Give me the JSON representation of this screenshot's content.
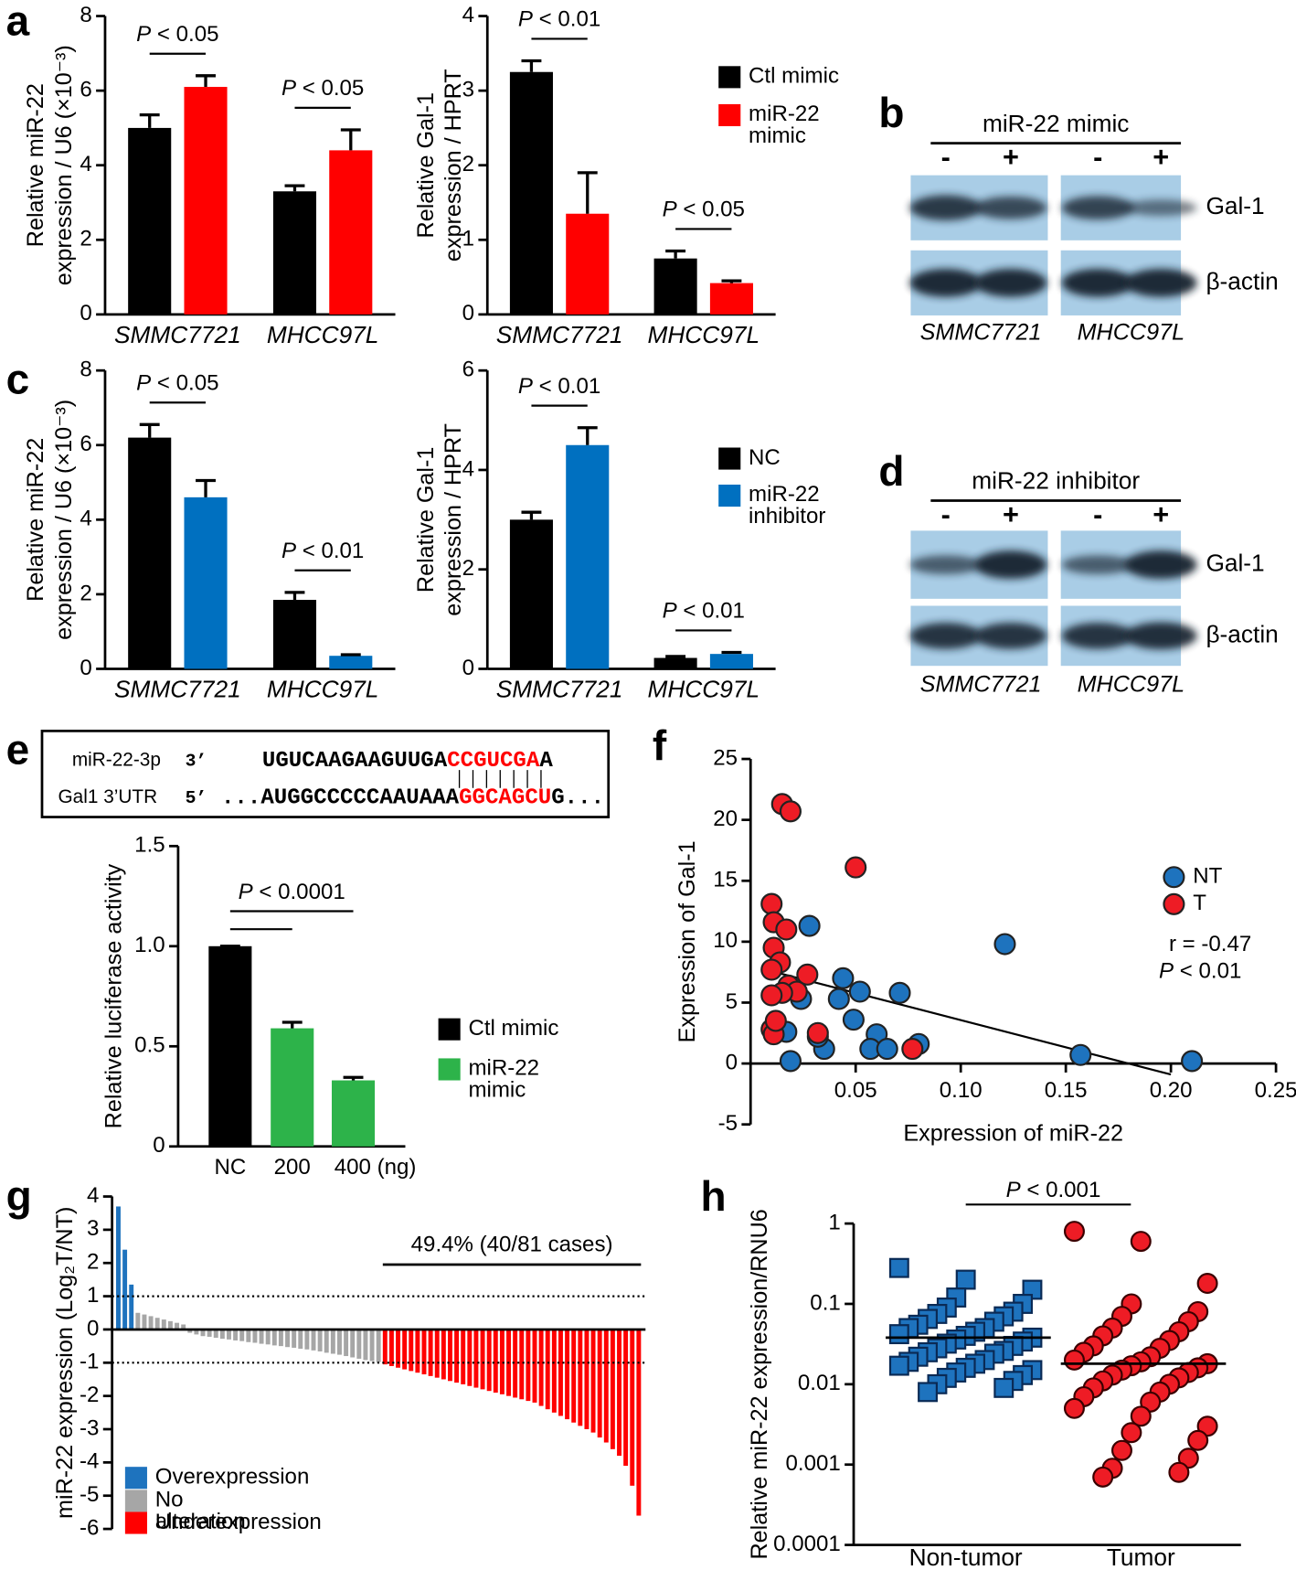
{
  "panel_labels": [
    "a",
    "b",
    "c",
    "d",
    "e",
    "f",
    "g",
    "h"
  ],
  "blots": [
    {
      "treatment": "miR-22 mimic",
      "lanes": [
        "-",
        "+",
        "-",
        "+"
      ],
      "rows": [
        "Gal-1",
        "β-actin"
      ],
      "cell_lines": [
        "SMMC7721",
        "MHCC97L"
      ]
    },
    {
      "treatment": "miR-22 inhibitor",
      "lanes": [
        "-",
        "+",
        "-",
        "+"
      ],
      "rows": [
        "Gal-1",
        "β-actin"
      ],
      "cell_lines": [
        "SMMC7721",
        "MHCC97L"
      ]
    }
  ],
  "sequence": {
    "mir_label": "miR-22-3p",
    "mir_end": "3’",
    "mir_seq": [
      "UGUCAAGAAGUUGA",
      "CCGUCGA",
      "A"
    ],
    "utr_label": "Gal1 3’UTR",
    "utr_end": "5’",
    "utr_seq": [
      "...AUGGCCCCCAAUAAA",
      "GGCAGCU",
      "G..."
    ]
  },
  "chart_data": [
    {
      "type": "bar",
      "ylabel": [
        "Relative miR-22",
        "expression / U6 (×10⁻³)"
      ],
      "categories": [
        "SMMC7721",
        "MHCC97L"
      ],
      "series": [
        {
          "color": "#000000",
          "values": [
            5.0,
            3.3
          ],
          "errors": [
            0.35,
            0.15
          ]
        },
        {
          "color": "#ff0000",
          "values": [
            6.1,
            4.4
          ],
          "errors": [
            0.3,
            0.55
          ]
        }
      ],
      "ylim": [
        0,
        8
      ],
      "yticks": [
        0,
        2,
        4,
        6,
        8
      ],
      "annotations": [
        "P < 0.05",
        "P < 0.05"
      ]
    },
    {
      "type": "bar",
      "ylabel": [
        "Relative Gal-1",
        "expression / HPRT"
      ],
      "categories": [
        "SMMC7721",
        "MHCC97L"
      ],
      "series": [
        {
          "name": "Ctl mimic",
          "color": "#000000",
          "values": [
            3.25,
            0.75
          ],
          "errors": [
            0.15,
            0.1
          ]
        },
        {
          "name": "miR-22 mimic",
          "color": "#ff0000",
          "values": [
            1.35,
            0.42
          ],
          "errors": [
            0.55,
            0.03
          ]
        }
      ],
      "ylim": [
        0,
        4
      ],
      "yticks": [
        0,
        1,
        2,
        3,
        4
      ],
      "annotations": [
        "P < 0.01",
        "P < 0.05"
      ]
    },
    {
      "type": "bar",
      "ylabel": [
        "Relative miR-22",
        "expression / U6 (×10⁻³)"
      ],
      "categories": [
        "SMMC7721",
        "MHCC97L"
      ],
      "series": [
        {
          "color": "#000000",
          "values": [
            6.2,
            1.85
          ],
          "errors": [
            0.35,
            0.2
          ]
        },
        {
          "color": "#0070c0",
          "values": [
            4.6,
            0.35
          ],
          "errors": [
            0.45,
            0.03
          ]
        }
      ],
      "ylim": [
        0,
        8
      ],
      "yticks": [
        0,
        2,
        4,
        6,
        8
      ],
      "annotations": [
        "P < 0.05",
        "P < 0.01"
      ]
    },
    {
      "type": "bar",
      "ylabel": [
        "Relative Gal-1",
        "expression / HPRT"
      ],
      "categories": [
        "SMMC7721",
        "MHCC97L"
      ],
      "series": [
        {
          "name": "NC",
          "color": "#000000",
          "values": [
            3.0,
            0.22
          ],
          "errors": [
            0.15,
            0.03
          ]
        },
        {
          "name": "miR-22 inhibitor",
          "color": "#0070c0",
          "values": [
            4.5,
            0.3
          ],
          "errors": [
            0.35,
            0.03
          ]
        }
      ],
      "ylim": [
        0,
        6
      ],
      "yticks": [
        0,
        2,
        4,
        6
      ],
      "annotations": [
        "P < 0.01",
        "P < 0.01"
      ]
    },
    {
      "type": "bar",
      "ylabel": [
        "Relative luciferase activity"
      ],
      "categories": [
        "NC",
        "200",
        "400 (ng)"
      ],
      "values": [
        1.0,
        0.59,
        0.33
      ],
      "errors": [
        0,
        0.03,
        0.015
      ],
      "colors": [
        "#000000",
        "#2db34a",
        "#2db34a"
      ],
      "legend": [
        {
          "name": "Ctl mimic",
          "color": "#000000"
        },
        {
          "name": "miR-22 mimic",
          "color": "#2db34a"
        }
      ],
      "ylim": [
        0,
        1.5
      ],
      "yticks": [
        0,
        0.5,
        {
          "value": 1,
          "label": "1.0"
        },
        1.5
      ],
      "annotation": "P < 0.0001"
    },
    {
      "type": "scatter",
      "ylabel": [
        "Expression of Gal-1"
      ],
      "xlabel": "Expression of miR-22",
      "series": [
        {
          "name": "NT",
          "color": "#1e73be",
          "x": [
            0.028,
            0.121,
            0.21,
            0.157,
            0.08,
            0.071,
            0.052,
            0.044,
            0.042,
            0.049,
            0.06,
            0.057,
            0.065,
            0.035,
            0.032,
            0.024,
            0.017,
            0.019
          ],
          "values": [
            11.3,
            9.8,
            0.2,
            0.7,
            1.6,
            5.8,
            5.9,
            7.0,
            5.3,
            3.6,
            2.4,
            1.2,
            1.2,
            1.2,
            2.2,
            5.3,
            2.6,
            0.2
          ]
        },
        {
          "name": "T",
          "color": "#ee1c25",
          "x": [
            0.015,
            0.019,
            0.05,
            0.01,
            0.011,
            0.017,
            0.011,
            0.014,
            0.01,
            0.027,
            0.018,
            0.022,
            0.015,
            0.01,
            0.01,
            0.011,
            0.032,
            0.077,
            0.012
          ],
          "values": [
            21.3,
            20.7,
            16.1,
            13.1,
            11.6,
            11.0,
            9.5,
            8.3,
            7.7,
            7.3,
            6.4,
            5.9,
            5.8,
            5.6,
            2.8,
            2.4,
            2.5,
            1.2,
            3.5
          ]
        }
      ],
      "fit": {
        "x": [
          0.005,
          0.2
        ],
        "y": [
          7.8,
          -0.9
        ]
      },
      "xlim": [
        0,
        0.25
      ],
      "xticks": [
        0.05,
        {
          "value": 0.1,
          "label": "0.10"
        },
        0.15,
        {
          "value": 0.2,
          "label": "0.20"
        },
        0.25
      ],
      "ylim": [
        -5,
        25
      ],
      "yticks": [
        -5,
        0,
        5,
        10,
        15,
        20,
        25
      ],
      "annotations": [
        "r = -0.47",
        "P < 0.01"
      ]
    },
    {
      "type": "bar",
      "ylabel": [
        "miR-22 expression (Log₂T/NT)"
      ],
      "series": [
        {
          "name": "Overexpression",
          "color": "#1e73be",
          "values": [
            3.7,
            2.4,
            1.35
          ]
        },
        {
          "name": "No alteration",
          "color": "#a6a6a6",
          "values": [
            0.5,
            0.45,
            0.4,
            0.35,
            0.3,
            0.25,
            0.2,
            0.15,
            -0.1,
            -0.15,
            -0.2,
            -0.22,
            -0.25,
            -0.28,
            -0.3,
            -0.33,
            -0.35,
            -0.38,
            -0.4,
            -0.43,
            -0.45,
            -0.48,
            -0.5,
            -0.53,
            -0.55,
            -0.58,
            -0.6,
            -0.63,
            -0.66,
            -0.7,
            -0.73,
            -0.76,
            -0.8,
            -0.84,
            -0.88,
            -0.92,
            -0.95,
            -0.98
          ]
        },
        {
          "name": "Underexpression",
          "color": "#ff0000",
          "values": [
            -1.05,
            -1.1,
            -1.15,
            -1.2,
            -1.25,
            -1.3,
            -1.35,
            -1.4,
            -1.45,
            -1.5,
            -1.55,
            -1.6,
            -1.65,
            -1.7,
            -1.75,
            -1.8,
            -1.85,
            -1.9,
            -1.95,
            -2.0,
            -2.05,
            -2.1,
            -2.15,
            -2.2,
            -2.3,
            -2.4,
            -2.5,
            -2.6,
            -2.7,
            -2.8,
            -2.9,
            -3.0,
            -3.1,
            -3.25,
            -3.4,
            -3.6,
            -3.8,
            -4.1,
            -4.7,
            -5.6
          ]
        }
      ],
      "thresholds": [
        1,
        -1
      ],
      "ylim": [
        -6,
        4
      ],
      "yticks": [
        -6,
        -5,
        -4,
        -3,
        -2,
        -1,
        0,
        1,
        2,
        3,
        4
      ],
      "annotation": "49.4% (40/81 cases)"
    },
    {
      "type": "scatter",
      "log_y": true,
      "ylabel": [
        "Relative miR-22 expression/RNU6"
      ],
      "categories": [
        "Non-tumor",
        "Tumor"
      ],
      "series": [
        {
          "color": "#1e73be",
          "marker": "square",
          "values": [
            0.28,
            0.2,
            0.15,
            0.12,
            0.1,
            0.09,
            0.08,
            0.075,
            0.07,
            0.065,
            0.06,
            0.055,
            0.05,
            0.05,
            0.045,
            0.042,
            0.04,
            0.038,
            0.036,
            0.034,
            0.032,
            0.03,
            0.028,
            0.026,
            0.025,
            0.024,
            0.022,
            0.02,
            0.019,
            0.018,
            0.017,
            0.016,
            0.015,
            0.014,
            0.013,
            0.012,
            0.011,
            0.01,
            0.009,
            0.008
          ]
        },
        {
          "color": "#ee1c25",
          "marker": "circle",
          "values": [
            0.8,
            0.6,
            0.18,
            0.1,
            0.08,
            0.07,
            0.06,
            0.05,
            0.045,
            0.04,
            0.035,
            0.03,
            0.028,
            0.025,
            0.022,
            0.02,
            0.019,
            0.018,
            0.017,
            0.016,
            0.015,
            0.014,
            0.013,
            0.012,
            0.011,
            0.01,
            0.009,
            0.008,
            0.007,
            0.006,
            0.005,
            0.004,
            0.003,
            0.0025,
            0.002,
            0.0015,
            0.0012,
            0.0009,
            0.0008,
            0.0007
          ]
        }
      ],
      "medians": [
        0.038,
        0.018
      ],
      "ylim": [
        0.0001,
        1
      ],
      "yticks": [
        0.0001,
        0.001,
        0.01,
        0.1,
        1
      ],
      "annotation": "P < 0.001"
    }
  ]
}
